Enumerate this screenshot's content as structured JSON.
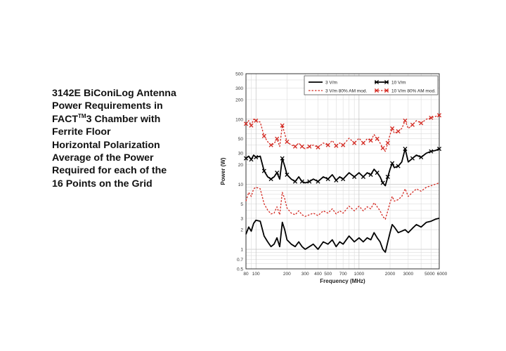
{
  "caption": {
    "line1": "3142E BiConiLog Antenna",
    "line2": "Power Requirements in",
    "line3_pre": "FACT",
    "line3_sup": "TM",
    "line3_post": "3 Chamber with",
    "line4": "Ferrite Floor",
    "line5": "Horizontal Polarization",
    "line6": "Average of the Power",
    "line7": "Required for each of the",
    "line8": "16 Points on the Grid"
  },
  "chart_data": {
    "type": "line",
    "xlabel": "Frequency (MHz)",
    "ylabel": "Power (W)",
    "xscale": "log",
    "yscale": "log",
    "xlim": [
      80,
      6000
    ],
    "ylim": [
      0.5,
      500
    ],
    "grid": true,
    "legend_position": "top-right",
    "x_ticks": [
      {
        "v": 80,
        "label": "80"
      },
      {
        "v": 100,
        "label": "100"
      },
      {
        "v": 200,
        "label": "200"
      },
      {
        "v": 300,
        "label": "300"
      },
      {
        "v": 400,
        "label": "400"
      },
      {
        "v": 500,
        "label": "500"
      },
      {
        "v": 700,
        "label": "700"
      },
      {
        "v": 1000,
        "label": "1000"
      },
      {
        "v": 2000,
        "label": "2000"
      },
      {
        "v": 3000,
        "label": "3000"
      },
      {
        "v": 5000,
        "label": "5000"
      },
      {
        "v": 6000,
        "label": "6000"
      }
    ],
    "y_ticks": [
      {
        "v": 0.5,
        "label": "0.5"
      },
      {
        "v": 0.7,
        "label": "0.7"
      },
      {
        "v": 1,
        "label": "1"
      },
      {
        "v": 2,
        "label": "2"
      },
      {
        "v": 3,
        "label": "3"
      },
      {
        "v": 5,
        "label": "5"
      },
      {
        "v": 10,
        "label": "10"
      },
      {
        "v": 20,
        "label": "20"
      },
      {
        "v": 30,
        "label": "30"
      },
      {
        "v": 50,
        "label": "50"
      },
      {
        "v": 100,
        "label": "100"
      },
      {
        "v": 200,
        "label": "200"
      },
      {
        "v": 300,
        "label": "300"
      },
      {
        "v": 500,
        "label": "500"
      }
    ],
    "series": [
      {
        "name": "3 V/m",
        "style": "solid",
        "color": "#000000",
        "x": [
          80,
          85,
          90,
          95,
          100,
          110,
          120,
          130,
          140,
          150,
          160,
          170,
          180,
          190,
          200,
          220,
          240,
          260,
          280,
          300,
          330,
          360,
          400,
          450,
          500,
          550,
          600,
          650,
          700,
          800,
          900,
          1000,
          1100,
          1200,
          1300,
          1400,
          1500,
          1600,
          1700,
          1800,
          1900,
          2000,
          2100,
          2200,
          2400,
          2600,
          2800,
          3000,
          3300,
          3600,
          4000,
          4500,
          5000,
          5500,
          6000
        ],
        "y": [
          1.7,
          2.2,
          1.9,
          2.5,
          2.8,
          2.7,
          1.6,
          1.3,
          1.1,
          1.2,
          1.5,
          1.1,
          2.6,
          2.0,
          1.4,
          1.2,
          1.1,
          1.3,
          1.1,
          1.0,
          1.1,
          1.2,
          1.0,
          1.3,
          1.2,
          1.4,
          1.1,
          1.3,
          1.2,
          1.6,
          1.3,
          1.5,
          1.3,
          1.5,
          1.4,
          1.8,
          1.5,
          1.3,
          1.0,
          0.9,
          1.3,
          1.8,
          2.4,
          2.2,
          1.8,
          1.9,
          2.0,
          1.8,
          2.1,
          2.4,
          2.2,
          2.6,
          2.7,
          2.9,
          3.0
        ]
      },
      {
        "name": "10 V/m",
        "style": "solid-x",
        "color": "#000000",
        "x": [
          80,
          85,
          90,
          95,
          100,
          110,
          120,
          130,
          140,
          150,
          160,
          170,
          180,
          190,
          200,
          220,
          240,
          260,
          280,
          300,
          330,
          360,
          400,
          450,
          500,
          550,
          600,
          650,
          700,
          800,
          900,
          1000,
          1100,
          1200,
          1300,
          1400,
          1500,
          1600,
          1700,
          1800,
          1900,
          2000,
          2100,
          2200,
          2400,
          2600,
          2800,
          3000,
          3300,
          3600,
          4000,
          4500,
          5000,
          5500,
          6000
        ],
        "y": [
          25,
          27,
          24,
          28,
          26,
          27,
          16,
          13,
          12,
          13,
          15,
          12,
          25,
          19,
          14,
          12,
          11,
          13,
          11,
          10.5,
          11,
          12,
          11,
          13,
          12,
          14,
          11.5,
          13,
          12,
          15,
          13,
          15,
          13,
          15,
          14,
          17,
          15,
          13,
          10.5,
          9.5,
          13,
          17,
          21,
          18,
          19,
          22,
          35,
          22,
          25,
          28,
          26,
          30,
          32,
          33,
          35
        ]
      },
      {
        "name": "3 V/m 80% AM mod.",
        "style": "dashed",
        "color": "#d42a22",
        "x": [
          80,
          85,
          90,
          95,
          100,
          110,
          120,
          130,
          140,
          150,
          160,
          170,
          180,
          190,
          200,
          220,
          240,
          260,
          280,
          300,
          330,
          360,
          400,
          450,
          500,
          550,
          600,
          650,
          700,
          800,
          900,
          1000,
          1100,
          1200,
          1300,
          1400,
          1500,
          1600,
          1700,
          1800,
          1900,
          2000,
          2100,
          2200,
          2400,
          2600,
          2800,
          3000,
          3300,
          3600,
          4000,
          4500,
          5000,
          5500,
          6000
        ],
        "y": [
          5.5,
          7.5,
          6.5,
          8.5,
          9,
          8.5,
          5,
          4,
          3.5,
          3.6,
          4.5,
          3.4,
          7.5,
          6,
          4.3,
          3.6,
          3.4,
          3.9,
          3.4,
          3.2,
          3.4,
          3.6,
          3.3,
          3.9,
          3.6,
          4.2,
          3.5,
          3.9,
          3.6,
          4.6,
          3.9,
          4.6,
          3.9,
          4.5,
          4.2,
          5.2,
          4.5,
          3.9,
          3.2,
          2.9,
          3.9,
          5.2,
          6.5,
          5.5,
          5.8,
          6.5,
          8.5,
          6.5,
          7.5,
          8.5,
          7.8,
          9,
          9.5,
          10,
          10.5
        ]
      },
      {
        "name": "10 V/m 80% AM mod.",
        "style": "dashed-x",
        "color": "#d42a22",
        "x": [
          80,
          85,
          90,
          95,
          100,
          110,
          120,
          130,
          140,
          150,
          160,
          170,
          180,
          190,
          200,
          220,
          240,
          260,
          280,
          300,
          330,
          360,
          400,
          450,
          500,
          550,
          600,
          650,
          700,
          800,
          900,
          1000,
          1100,
          1200,
          1300,
          1400,
          1500,
          1600,
          1700,
          1800,
          1900,
          2000,
          2100,
          2200,
          2400,
          2600,
          2800,
          3000,
          3300,
          3600,
          4000,
          4500,
          5000,
          5500,
          6000
        ],
        "y": [
          85,
          95,
          80,
          100,
          95,
          90,
          55,
          45,
          40,
          42,
          50,
          38,
          80,
          60,
          45,
          40,
          38,
          43,
          38,
          35,
          38,
          40,
          37,
          43,
          40,
          47,
          39,
          43,
          40,
          51,
          43,
          51,
          43,
          50,
          47,
          58,
          50,
          43,
          36,
          32,
          43,
          58,
          72,
          61,
          65,
          72,
          95,
          72,
          82,
          95,
          87,
          100,
          105,
          110,
          115
        ]
      }
    ]
  }
}
